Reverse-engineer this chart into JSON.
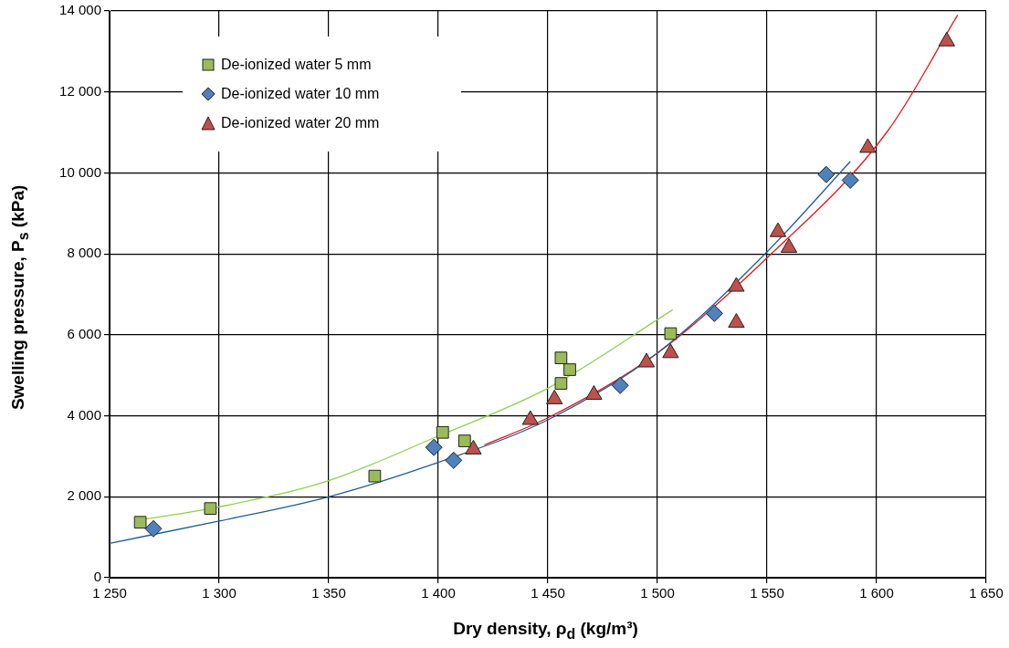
{
  "chart_data": {
    "type": "scatter",
    "xlabel": "Dry density, ρ$_{d}$ (kg/m³)",
    "ylabel": "Swelling pressure, P$_{s}$ (kPa)",
    "xlim": [
      1250,
      1650
    ],
    "ylim": [
      0,
      14000
    ],
    "xticks": [
      {
        "value": 1250,
        "label": "1 250"
      },
      {
        "value": 1300,
        "label": "1 300"
      },
      {
        "value": 1350,
        "label": "1 350"
      },
      {
        "value": 1400,
        "label": "1 400"
      },
      {
        "value": 1450,
        "label": "1 450"
      },
      {
        "value": 1500,
        "label": "1 500"
      },
      {
        "value": 1550,
        "label": "1 550"
      },
      {
        "value": 1600,
        "label": "1 600"
      },
      {
        "value": 1650,
        "label": "1 650"
      }
    ],
    "yticks": [
      0,
      {
        "value": 2000,
        "label": "2 000"
      },
      {
        "value": 4000,
        "label": "4 000"
      },
      {
        "value": 6000,
        "label": "6 000"
      },
      {
        "value": 8000,
        "label": "8 000"
      },
      {
        "value": 10000,
        "label": "10 000"
      },
      {
        "value": 12000,
        "label": "12 000"
      },
      {
        "value": 14000,
        "label": "14 000"
      }
    ],
    "grid": true,
    "legend": "top left",
    "series": [
      {
        "name": "De-ionized water 5 mm",
        "color": "#9bbb59",
        "marker": "square",
        "x": [
          1264,
          1296,
          1371,
          1402,
          1412,
          1456,
          1456,
          1460,
          1506
        ],
        "values": [
          1370,
          1710,
          2510,
          3590,
          3380,
          4800,
          5430,
          5140,
          6030
        ]
      },
      {
        "name": "De-ionized water 10 mm",
        "color": "#4f81bd",
        "marker": "diamond",
        "x": [
          1270,
          1398,
          1407,
          1483,
          1526,
          1577,
          1588
        ],
        "values": [
          1210,
          3220,
          2900,
          4750,
          6530,
          9960,
          9820
        ]
      },
      {
        "name": "De-ionized water 20 mm",
        "color": "#c0504d",
        "marker": "triangle",
        "x": [
          1416,
          1442,
          1453,
          1471,
          1495,
          1506,
          1536,
          1536,
          1555,
          1560,
          1596,
          1632
        ],
        "values": [
          3170,
          3900,
          4410,
          4520,
          5320,
          5550,
          7190,
          6300,
          8540,
          8150,
          10620,
          13250
        ]
      },
      {
        "type": "line",
        "color": "#92d050",
        "x": [
          1263,
          1300,
          1350,
          1400,
          1450,
          1507
        ],
        "values": [
          1420,
          1750,
          2400,
          3500,
          4680,
          6620
        ]
      },
      {
        "type": "line",
        "color": "#1f5c99",
        "x": [
          1250,
          1300,
          1350,
          1400,
          1450,
          1500,
          1550,
          1588
        ],
        "values": [
          850,
          1400,
          2000,
          2850,
          3900,
          5550,
          8050,
          10280
        ]
      },
      {
        "type": "line",
        "color": "#e41a1c",
        "x": [
          1421,
          1450,
          1500,
          1550,
          1605,
          1637
        ],
        "values": [
          3280,
          3950,
          5550,
          7900,
          11030,
          13900
        ]
      }
    ]
  }
}
